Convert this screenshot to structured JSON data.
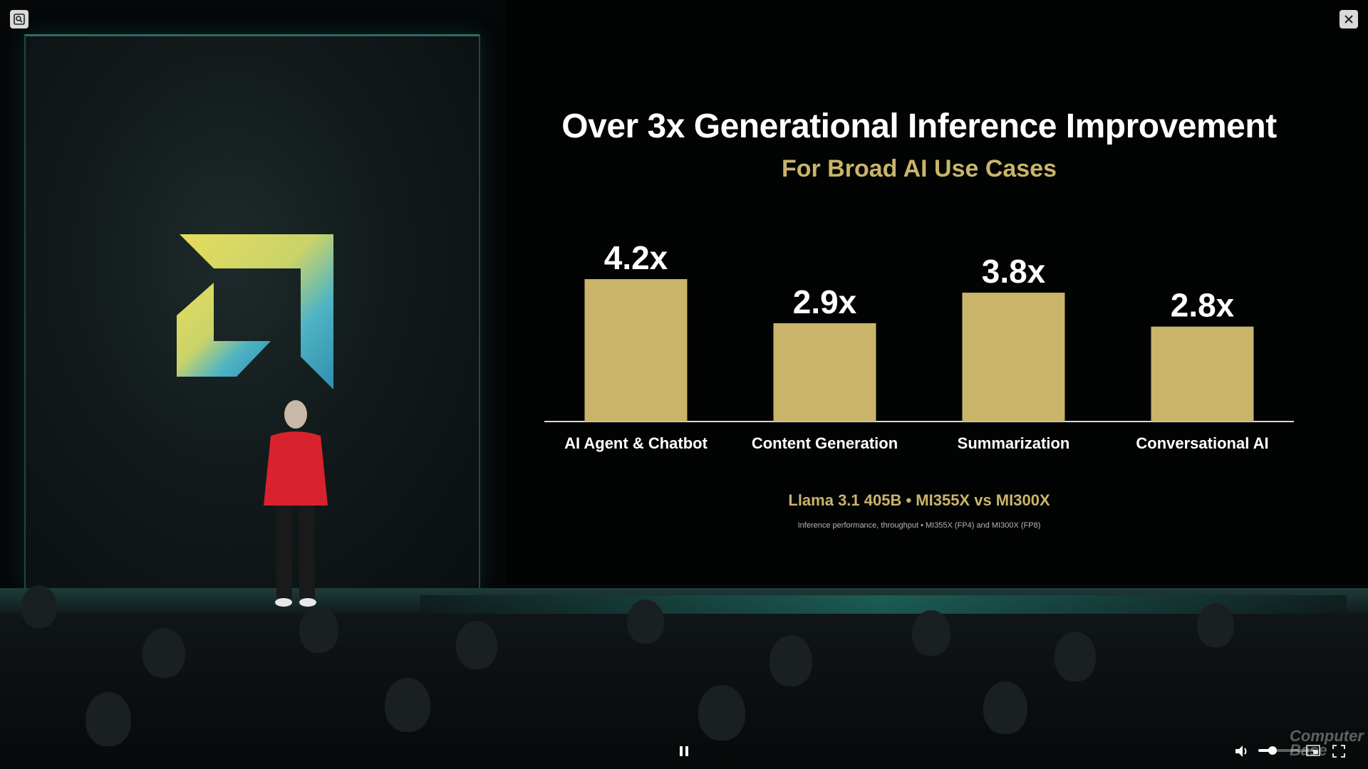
{
  "slide": {
    "title": "Over 3x Generational Inference Improvement",
    "subtitle": "For Broad AI Use Cases",
    "footnote_main": "Llama 3.1 405B  •  MI355X vs MI300X",
    "footnote_sub": "Inference performance, throughput  •  MI355X (FP4) and MI300X (FP8)"
  },
  "chart_data": {
    "type": "bar",
    "categories": [
      "AI Agent & Chatbot",
      "Content Generation",
      "Summarization",
      "Conversational AI"
    ],
    "values": [
      4.2,
      2.9,
      3.8,
      2.8
    ],
    "value_labels": [
      "4.2x",
      "2.9x",
      "3.8x",
      "2.8x"
    ],
    "title": "Over 3x Generational Inference Improvement",
    "subtitle": "For Broad AI Use Cases",
    "xlabel": "",
    "ylabel": "",
    "ylim": [
      0,
      4.2
    ],
    "grid": false,
    "bar_color": "#c9b46a",
    "label_color": "#ffffff"
  },
  "player": {
    "watermark": "Computer Base"
  },
  "colors": {
    "accent_gold": "#c9b46a",
    "logo_yellow": "#e3d85a",
    "logo_teal": "#3fb0c8"
  }
}
